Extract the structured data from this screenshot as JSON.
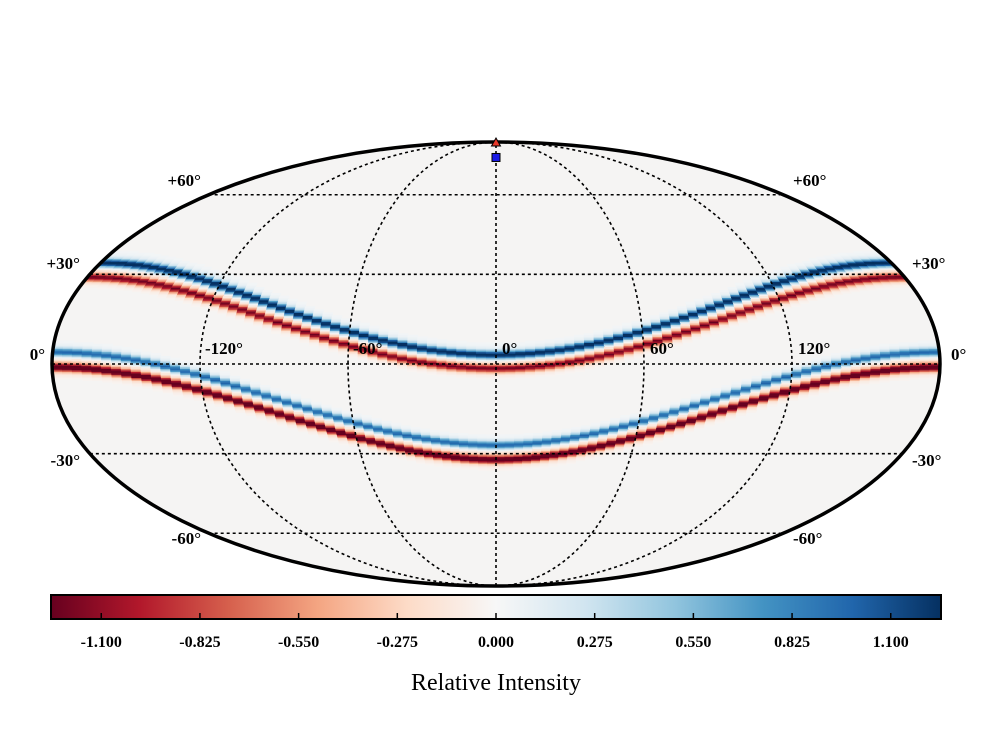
{
  "chart_data": {
    "type": "heatmap",
    "projection": "mollweide",
    "title": "",
    "colormap": "RdBu",
    "colormap_stops": [
      "#67001f",
      "#b2182b",
      "#d6604d",
      "#f4a582",
      "#fddbc7",
      "#f7f7f7",
      "#d1e5f0",
      "#92c5de",
      "#4393c3",
      "#2166ac",
      "#053061"
    ],
    "background_color": "#f5f4f3",
    "value_range": [
      -1.24,
      1.24
    ],
    "longitude_gridlines_deg": [
      -120,
      -60,
      0,
      60,
      120
    ],
    "latitude_gridlines_deg": [
      -60,
      -30,
      0,
      30,
      60
    ],
    "longitude_labels": [
      "-120°",
      "-60°",
      "0°",
      "60°",
      "120°"
    ],
    "latitude_labels_left": [
      "+60°",
      "+30°",
      "0°",
      "-30°",
      "-60°"
    ],
    "latitude_labels_right": [
      "+60°",
      "+30°",
      "0°",
      "-30°",
      "-60°"
    ],
    "series": [
      {
        "name": "upper band blue edge",
        "sign": "positive",
        "lat_at_lon_0": 3,
        "lat_at_lon_180": 34,
        "peak": 1.24
      },
      {
        "name": "upper band red edge",
        "sign": "negative",
        "lat_at_lon_0": -1.5,
        "lat_at_lon_180": 29,
        "peak": -1.0
      },
      {
        "name": "lower band blue edge",
        "sign": "positive",
        "lat_at_lon_0": -27,
        "lat_at_lon_180": 4,
        "peak": 0.9
      },
      {
        "name": "lower band red edge",
        "sign": "negative",
        "lat_at_lon_0": -32,
        "lat_at_lon_180": -1,
        "peak": -1.24
      }
    ],
    "markers": [
      {
        "name": "red triangle",
        "shape": "triangle",
        "color": "#e8392a",
        "lon_deg": 0,
        "lat_deg": 90
      },
      {
        "name": "blue square",
        "shape": "square",
        "color": "#1a1ae6",
        "lon_deg": 0,
        "lat_deg": 78
      }
    ],
    "colorbar": {
      "label": "Relative Intensity",
      "ticks": [
        -1.1,
        -0.825,
        -0.55,
        -0.275,
        0.0,
        0.275,
        0.55,
        0.825,
        1.1
      ],
      "tick_labels": [
        "-1.100",
        "-0.825",
        "-0.550",
        "-0.275",
        "0.000",
        "0.275",
        "0.550",
        "0.825",
        "1.100"
      ],
      "range": [
        -1.24,
        1.24
      ]
    }
  }
}
